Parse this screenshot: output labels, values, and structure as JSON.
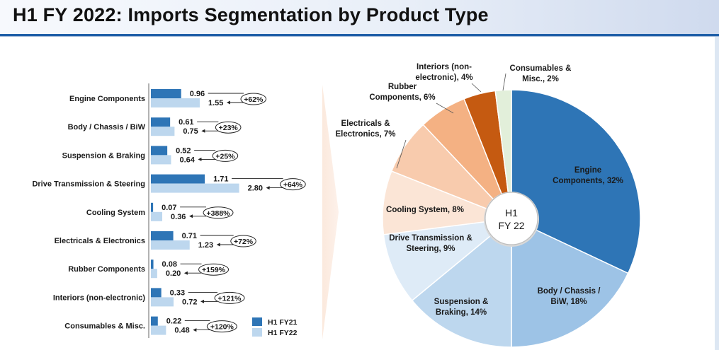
{
  "title": "H1 FY 2022: Imports Segmentation by Product Type",
  "chart_data": [
    {
      "type": "bar",
      "orientation": "horizontal",
      "categories": [
        "Engine Components",
        "Body / Chassis / BiW",
        "Suspension & Braking",
        "Drive Transmission & Steering",
        "Cooling System",
        "Electricals & Electronics",
        "Rubber Components",
        "Interiors (non-electronic)",
        "Consumables & Misc."
      ],
      "series": [
        {
          "name": "H1 FY21",
          "values": [
            0.96,
            0.61,
            0.52,
            1.71,
            0.07,
            0.71,
            0.08,
            0.33,
            0.22
          ],
          "labels": [
            "0.96",
            "0.61",
            "0.52",
            "1.71",
            "0.07",
            "0.71",
            "0.08",
            "0.33",
            "0.22"
          ],
          "color": "#2e75b6"
        },
        {
          "name": "H1 FY22",
          "values": [
            1.55,
            0.75,
            0.64,
            2.8,
            0.36,
            1.23,
            0.2,
            0.72,
            0.48
          ],
          "labels": [
            "1.55",
            "0.75",
            "0.64",
            "2.80",
            "0.36",
            "1.23",
            "0.20",
            "0.72",
            "0.48"
          ],
          "color": "#bdd7ee"
        }
      ],
      "growth": [
        "+62%",
        "+23%",
        "+25%",
        "+64%",
        "+388%",
        "+72%",
        "+159%",
        "+121%",
        "+120%"
      ],
      "legend": [
        "H1 FY21",
        "H1 FY22"
      ],
      "legend_position": "bottom-right"
    },
    {
      "type": "pie",
      "style": "donut",
      "center_label": [
        "H1",
        "FY 22"
      ],
      "slices": [
        {
          "name": "Engine Components",
          "value": 32,
          "lines": [
            "Engine",
            "Components, 32%"
          ],
          "color": "#2e75b6"
        },
        {
          "name": "Body / Chassis / BiW",
          "value": 18,
          "lines": [
            "Body / Chassis /",
            "BiW, 18%"
          ],
          "color": "#9dc3e6"
        },
        {
          "name": "Suspension & Braking",
          "value": 14,
          "lines": [
            "Suspension &",
            "Braking, 14%"
          ],
          "color": "#bdd7ee"
        },
        {
          "name": "Drive Transmission & Steering",
          "value": 9,
          "lines": [
            "Drive Transmission &",
            "Steering, 9%"
          ],
          "color": "#deebf7"
        },
        {
          "name": "Cooling System",
          "value": 8,
          "lines": [
            "Cooling System, 8%"
          ],
          "color": "#fbe5d6"
        },
        {
          "name": "Electricals & Electronics",
          "value": 7,
          "lines": [
            "Electricals &",
            "Electronics, 7%"
          ],
          "color": "#f8cbad"
        },
        {
          "name": "Rubber Components",
          "value": 6,
          "lines": [
            "Rubber",
            "Components, 6%"
          ],
          "color": "#f4b183"
        },
        {
          "name": "Interiors (non-electronic)",
          "value": 4,
          "lines": [
            "Interiors (non-",
            "electronic), 4%"
          ],
          "color": "#c55a11"
        },
        {
          "name": "Consumables & Misc.",
          "value": 2,
          "lines": [
            "Consumables &",
            "Misc., 2%"
          ],
          "color": "#e2efda"
        }
      ]
    }
  ]
}
